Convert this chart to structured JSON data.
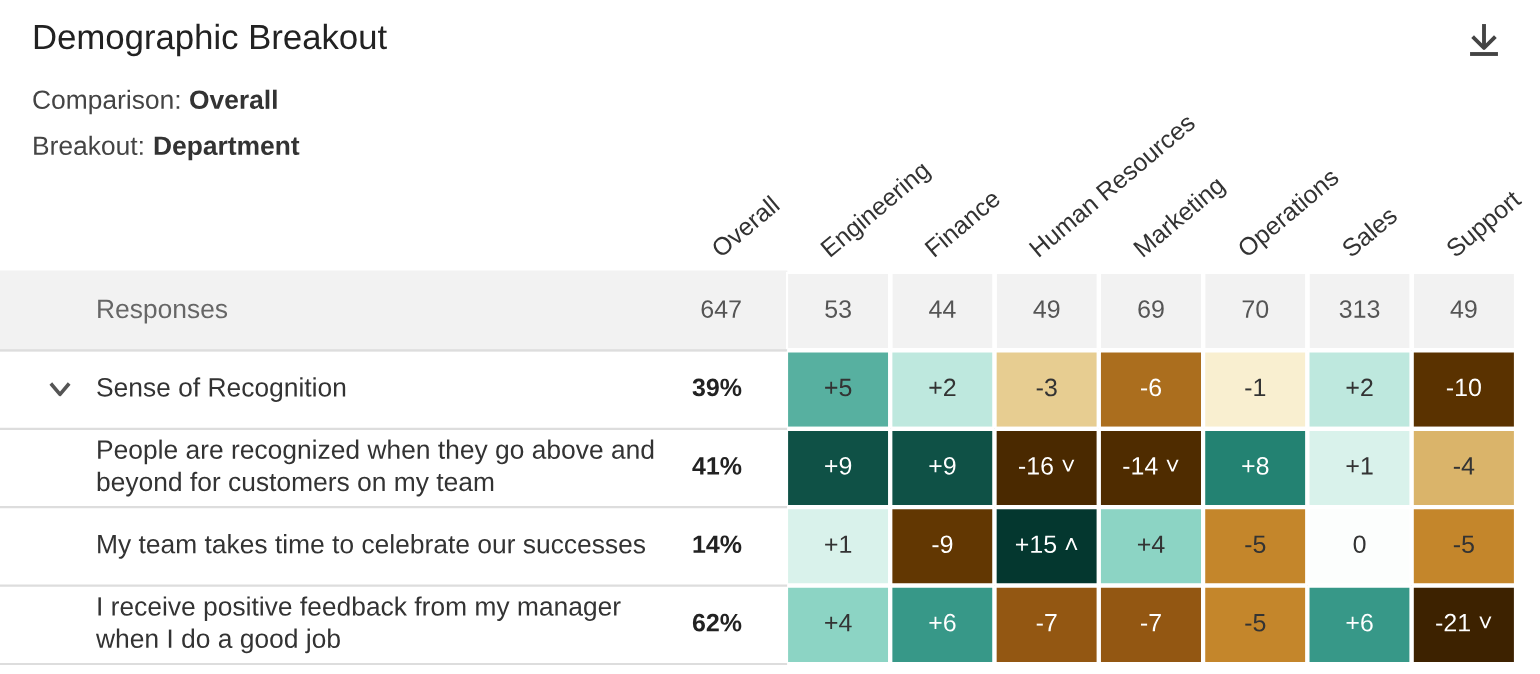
{
  "chart_data": {
    "type": "heatmap",
    "title": "Demographic Breakout",
    "subtitle": "Comparison: Overall",
    "annotations": [
      "Breakout: Department"
    ],
    "y2label": "Overall",
    "categories": [
      "Engineering",
      "Finance",
      "Human Resources",
      "Marketing",
      "Operations",
      "Sales",
      "Support"
    ],
    "y_categories": [
      "Responses",
      "Sense of Recognition",
      "People are recognized when they go above and beyond for customers on my team",
      "My team takes time to celebrate our successes",
      "I receive positive feedback from my manager when I do a good job"
    ],
    "y2_categories": [
      "647",
      "39%",
      "41%",
      "14%",
      "62%"
    ],
    "cells": [
      [
        null,
        null,
        null,
        null,
        null,
        null,
        null
      ],
      [
        5,
        2,
        -3,
        -6,
        -1,
        2,
        -10
      ],
      [
        9,
        9,
        -16,
        -14,
        8,
        1,
        -4
      ],
      [
        1,
        -9,
        15,
        4,
        -5,
        0,
        -5
      ],
      [
        4,
        6,
        -7,
        -7,
        -5,
        6,
        -21
      ]
    ],
    "cell_labels": [
      [
        "53",
        "44",
        "49",
        "69",
        "70",
        "313",
        "49"
      ],
      [
        "+5",
        "+2",
        "-3",
        "-6",
        "-1",
        "+2",
        "-10"
      ],
      [
        "+9",
        "+9",
        "-16 ˅",
        "-14 ˅",
        "+8",
        "+1",
        "-4"
      ],
      [
        "+1",
        "-9",
        "+15 ˄",
        "+4",
        "-5",
        "0",
        "-5"
      ],
      [
        "+4",
        "+6",
        "-7",
        "-7",
        "-5",
        "+6",
        "-21 ˅"
      ]
    ]
  }
}
